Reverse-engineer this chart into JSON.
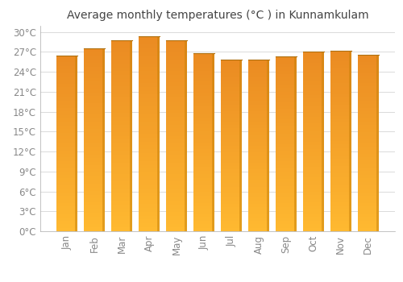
{
  "months": [
    "Jan",
    "Feb",
    "Mar",
    "Apr",
    "May",
    "Jun",
    "Jul",
    "Aug",
    "Sep",
    "Oct",
    "Nov",
    "Dec"
  ],
  "temperatures": [
    26.5,
    27.5,
    28.7,
    29.4,
    28.7,
    26.8,
    25.8,
    25.8,
    26.3,
    27.0,
    27.2,
    26.6
  ],
  "bar_color": "#FDB931",
  "bar_edge_color": "#C8820A",
  "bar_top_color": "#E8960A",
  "background_color": "#FFFFFF",
  "grid_color": "#CCCCCC",
  "title": "Average monthly temperatures (°C ) in Kunnamkulam",
  "title_fontsize": 10,
  "tick_label_color": "#888888",
  "tick_fontsize": 8.5,
  "ylim": [
    0,
    31
  ],
  "yticks": [
    0,
    3,
    6,
    9,
    12,
    15,
    18,
    21,
    24,
    27,
    30
  ]
}
